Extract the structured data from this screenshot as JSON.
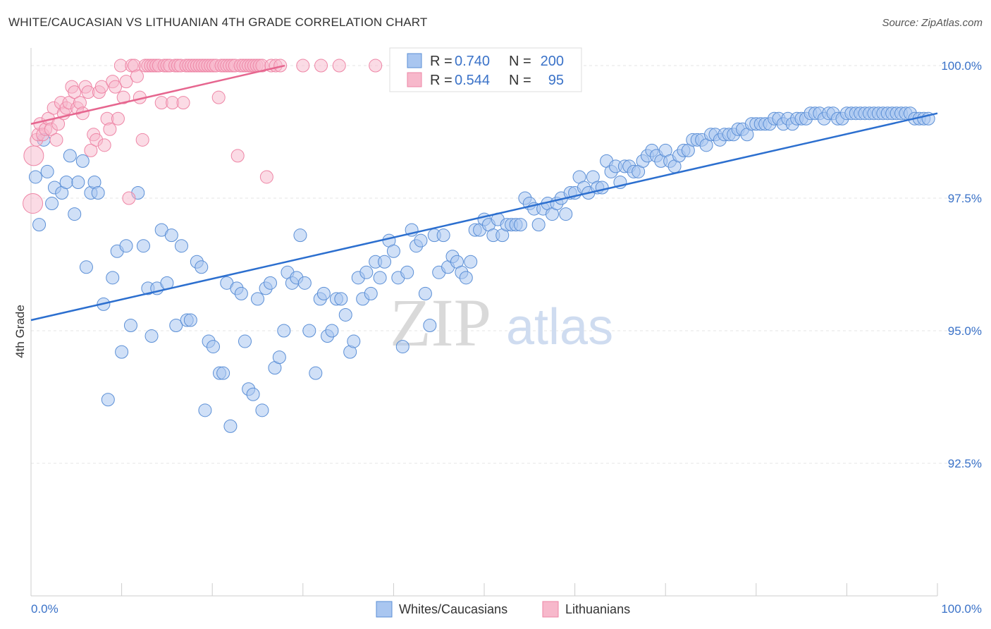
{
  "header": {
    "title": "WHITE/CAUCASIAN VS LITHUANIAN 4TH GRADE CORRELATION CHART",
    "source": "Source: ZipAtlas.com"
  },
  "watermark": {
    "zip": "ZIP",
    "atlas": "atlas"
  },
  "legend": {
    "rows": [
      {
        "r_label": "R = ",
        "r_value": "0.740",
        "n_label": "N = ",
        "n_value": "200",
        "color": "#a9c6f0"
      },
      {
        "r_label": "R = ",
        "r_value": "0.544",
        "n_label": "N = ",
        "n_value": "95",
        "color": "#f7b8cb"
      }
    ]
  },
  "bottom_legend": {
    "items": [
      {
        "label": "Whites/Caucasians",
        "color": "#a9c6f0"
      },
      {
        "label": "Lithuanians",
        "color": "#f7b8cb"
      }
    ]
  },
  "chart_data": {
    "type": "scatter",
    "title": "WHITE/CAUCASIAN VS LITHUANIAN 4TH GRADE CORRELATION CHART",
    "xlabel": "",
    "ylabel": "4th Grade",
    "xlim": [
      0,
      100
    ],
    "ylim": [
      90.0,
      100.2
    ],
    "x_tick_labels": [
      "0.0%",
      "100.0%"
    ],
    "y_ticks": [
      92.5,
      95.0,
      97.5,
      100.0
    ],
    "y_tick_labels": [
      "92.5%",
      "95.0%",
      "97.5%",
      "100.0%"
    ],
    "grid": true,
    "legend_position": "top-center",
    "colors": {
      "whites_fill": "#a9c6f0",
      "whites_stroke": "#5b8fd6",
      "whites_line": "#2c6fcf",
      "lith_fill": "#f7b8cb",
      "lith_stroke": "#ee86a6",
      "lith_line": "#e6668f"
    },
    "series": [
      {
        "name": "Whites/Caucasians",
        "r": 0.74,
        "n": 200,
        "trend": {
          "x": [
            0,
            100
          ],
          "y": [
            95.2,
            99.1
          ]
        },
        "points": [
          [
            0.5,
            97.9
          ],
          [
            0.9,
            97.0
          ],
          [
            1.4,
            98.6
          ],
          [
            1.8,
            98.0
          ],
          [
            2.3,
            97.4
          ],
          [
            2.6,
            97.7
          ],
          [
            3.4,
            97.6
          ],
          [
            3.9,
            97.8
          ],
          [
            4.3,
            98.3
          ],
          [
            4.8,
            97.2
          ],
          [
            5.2,
            97.8
          ],
          [
            5.7,
            98.2
          ],
          [
            6.1,
            96.2
          ],
          [
            6.6,
            97.6
          ],
          [
            7.0,
            97.8
          ],
          [
            7.4,
            97.6
          ],
          [
            8.0,
            95.5
          ],
          [
            8.5,
            93.7
          ],
          [
            9.0,
            96.0
          ],
          [
            9.5,
            96.5
          ],
          [
            10.0,
            94.6
          ],
          [
            10.5,
            96.6
          ],
          [
            11.0,
            95.1
          ],
          [
            11.8,
            97.6
          ],
          [
            12.4,
            96.6
          ],
          [
            12.9,
            95.8
          ],
          [
            13.3,
            94.9
          ],
          [
            13.9,
            95.8
          ],
          [
            14.4,
            96.9
          ],
          [
            15.0,
            95.9
          ],
          [
            15.5,
            96.8
          ],
          [
            16.0,
            95.1
          ],
          [
            16.6,
            96.6
          ],
          [
            17.2,
            95.2
          ],
          [
            17.6,
            95.2
          ],
          [
            18.3,
            96.3
          ],
          [
            18.8,
            96.2
          ],
          [
            19.2,
            93.5
          ],
          [
            19.6,
            94.8
          ],
          [
            20.1,
            94.7
          ],
          [
            20.8,
            94.2
          ],
          [
            21.2,
            94.2
          ],
          [
            21.6,
            95.9
          ],
          [
            22.0,
            93.2
          ],
          [
            22.7,
            95.8
          ],
          [
            23.2,
            95.7
          ],
          [
            23.6,
            94.8
          ],
          [
            24.0,
            93.9
          ],
          [
            24.5,
            93.8
          ],
          [
            25.0,
            95.6
          ],
          [
            25.5,
            93.5
          ],
          [
            25.9,
            95.8
          ],
          [
            26.4,
            95.9
          ],
          [
            26.9,
            94.3
          ],
          [
            27.4,
            94.5
          ],
          [
            27.9,
            95.0
          ],
          [
            28.3,
            96.1
          ],
          [
            28.8,
            95.9
          ],
          [
            29.3,
            96.0
          ],
          [
            29.7,
            96.8
          ],
          [
            30.2,
            95.9
          ],
          [
            30.7,
            95.0
          ],
          [
            31.4,
            94.2
          ],
          [
            31.9,
            95.6
          ],
          [
            32.3,
            95.7
          ],
          [
            32.7,
            94.9
          ],
          [
            33.2,
            95.0
          ],
          [
            33.7,
            95.6
          ],
          [
            34.2,
            95.6
          ],
          [
            34.7,
            95.3
          ],
          [
            35.2,
            94.6
          ],
          [
            35.6,
            94.8
          ],
          [
            36.1,
            96.0
          ],
          [
            36.6,
            95.6
          ],
          [
            37.0,
            96.1
          ],
          [
            37.5,
            95.7
          ],
          [
            38.0,
            96.3
          ],
          [
            38.5,
            96.0
          ],
          [
            39.0,
            96.3
          ],
          [
            39.5,
            96.7
          ],
          [
            40.0,
            96.5
          ],
          [
            40.5,
            96.0
          ],
          [
            41.0,
            94.7
          ],
          [
            41.5,
            96.1
          ],
          [
            42.0,
            96.9
          ],
          [
            42.5,
            96.6
          ],
          [
            43.0,
            96.7
          ],
          [
            43.5,
            95.7
          ],
          [
            44.0,
            95.1
          ],
          [
            44.5,
            96.8
          ],
          [
            45.0,
            96.1
          ],
          [
            45.5,
            96.8
          ],
          [
            46.0,
            96.2
          ],
          [
            46.5,
            96.4
          ],
          [
            47.0,
            96.3
          ],
          [
            47.5,
            96.1
          ],
          [
            48.0,
            96.0
          ],
          [
            48.5,
            96.3
          ],
          [
            49.0,
            96.9
          ],
          [
            49.5,
            96.9
          ],
          [
            50.0,
            97.1
          ],
          [
            50.5,
            97.0
          ],
          [
            51.0,
            96.8
          ],
          [
            51.5,
            97.1
          ],
          [
            52.0,
            96.8
          ],
          [
            52.5,
            97.0
          ],
          [
            53.0,
            97.0
          ],
          [
            53.5,
            97.0
          ],
          [
            54.0,
            97.0
          ],
          [
            54.5,
            97.5
          ],
          [
            55.0,
            97.4
          ],
          [
            55.5,
            97.3
          ],
          [
            56.0,
            97.0
          ],
          [
            56.5,
            97.3
          ],
          [
            57.0,
            97.4
          ],
          [
            57.5,
            97.2
          ],
          [
            58.0,
            97.4
          ],
          [
            58.5,
            97.5
          ],
          [
            59.0,
            97.2
          ],
          [
            59.5,
            97.6
          ],
          [
            60.0,
            97.6
          ],
          [
            60.5,
            97.9
          ],
          [
            61.0,
            97.7
          ],
          [
            61.5,
            97.6
          ],
          [
            62.0,
            97.9
          ],
          [
            62.5,
            97.7
          ],
          [
            63.0,
            97.7
          ],
          [
            63.5,
            98.2
          ],
          [
            64.0,
            98.0
          ],
          [
            64.5,
            98.1
          ],
          [
            65.0,
            97.8
          ],
          [
            65.5,
            98.1
          ],
          [
            66.0,
            98.1
          ],
          [
            66.5,
            98.0
          ],
          [
            67.0,
            98.0
          ],
          [
            67.5,
            98.2
          ],
          [
            68.0,
            98.3
          ],
          [
            68.5,
            98.4
          ],
          [
            69.0,
            98.3
          ],
          [
            69.5,
            98.2
          ],
          [
            70.0,
            98.4
          ],
          [
            70.5,
            98.2
          ],
          [
            71.0,
            98.1
          ],
          [
            71.5,
            98.3
          ],
          [
            72.0,
            98.4
          ],
          [
            72.5,
            98.4
          ],
          [
            73.0,
            98.6
          ],
          [
            73.5,
            98.6
          ],
          [
            74.0,
            98.6
          ],
          [
            74.5,
            98.5
          ],
          [
            75.0,
            98.7
          ],
          [
            75.5,
            98.7
          ],
          [
            76.0,
            98.6
          ],
          [
            76.5,
            98.7
          ],
          [
            77.0,
            98.7
          ],
          [
            77.5,
            98.7
          ],
          [
            78.0,
            98.8
          ],
          [
            78.5,
            98.8
          ],
          [
            79.0,
            98.7
          ],
          [
            79.5,
            98.9
          ],
          [
            80.0,
            98.9
          ],
          [
            80.5,
            98.9
          ],
          [
            81.0,
            98.9
          ],
          [
            81.5,
            98.9
          ],
          [
            82.0,
            99.0
          ],
          [
            82.5,
            99.0
          ],
          [
            83.0,
            98.9
          ],
          [
            83.5,
            99.0
          ],
          [
            84.0,
            98.9
          ],
          [
            84.5,
            99.0
          ],
          [
            85.0,
            99.0
          ],
          [
            85.5,
            99.0
          ],
          [
            86.0,
            99.1
          ],
          [
            86.5,
            99.1
          ],
          [
            87.0,
            99.1
          ],
          [
            87.5,
            99.0
          ],
          [
            88.0,
            99.1
          ],
          [
            88.5,
            99.1
          ],
          [
            89.0,
            99.0
          ],
          [
            89.5,
            99.0
          ],
          [
            90.0,
            99.1
          ],
          [
            90.5,
            99.1
          ],
          [
            91.0,
            99.1
          ],
          [
            91.5,
            99.1
          ],
          [
            92.0,
            99.1
          ],
          [
            92.5,
            99.1
          ],
          [
            93.0,
            99.1
          ],
          [
            93.5,
            99.1
          ],
          [
            94.0,
            99.1
          ],
          [
            94.5,
            99.1
          ],
          [
            95.0,
            99.1
          ],
          [
            95.5,
            99.1
          ],
          [
            96.0,
            99.1
          ],
          [
            96.5,
            99.1
          ],
          [
            97.0,
            99.1
          ],
          [
            97.5,
            99.0
          ],
          [
            98.0,
            99.0
          ],
          [
            98.5,
            99.0
          ],
          [
            99.0,
            99.0
          ]
        ]
      },
      {
        "name": "Lithuanians",
        "r": 0.544,
        "n": 95,
        "trend": {
          "x": [
            0,
            28
          ],
          "y": [
            98.9,
            100.0
          ]
        },
        "points": [
          [
            0.2,
            97.4
          ],
          [
            0.3,
            98.3
          ],
          [
            0.6,
            98.6
          ],
          [
            0.8,
            98.7
          ],
          [
            1.0,
            98.9
          ],
          [
            1.3,
            98.7
          ],
          [
            1.6,
            98.8
          ],
          [
            1.9,
            99.0
          ],
          [
            2.2,
            98.8
          ],
          [
            2.5,
            99.2
          ],
          [
            2.8,
            98.6
          ],
          [
            3.0,
            98.9
          ],
          [
            3.3,
            99.3
          ],
          [
            3.6,
            99.1
          ],
          [
            3.9,
            99.2
          ],
          [
            4.2,
            99.3
          ],
          [
            4.5,
            99.6
          ],
          [
            4.8,
            99.5
          ],
          [
            5.1,
            99.2
          ],
          [
            5.4,
            99.3
          ],
          [
            5.7,
            99.1
          ],
          [
            6.0,
            99.6
          ],
          [
            6.3,
            99.5
          ],
          [
            6.6,
            98.4
          ],
          [
            6.9,
            98.7
          ],
          [
            7.2,
            98.6
          ],
          [
            7.5,
            99.5
          ],
          [
            7.8,
            99.6
          ],
          [
            8.1,
            98.5
          ],
          [
            8.4,
            99.0
          ],
          [
            8.7,
            98.8
          ],
          [
            9.0,
            99.7
          ],
          [
            9.3,
            99.6
          ],
          [
            9.6,
            99.0
          ],
          [
            9.9,
            100.0
          ],
          [
            10.2,
            99.4
          ],
          [
            10.5,
            99.7
          ],
          [
            10.8,
            97.5
          ],
          [
            11.1,
            100.0
          ],
          [
            11.4,
            100.0
          ],
          [
            11.7,
            99.8
          ],
          [
            12.0,
            99.4
          ],
          [
            12.3,
            98.6
          ],
          [
            12.6,
            100.0
          ],
          [
            12.9,
            100.0
          ],
          [
            13.2,
            100.0
          ],
          [
            13.5,
            100.0
          ],
          [
            13.8,
            100.0
          ],
          [
            14.1,
            100.0
          ],
          [
            14.4,
            99.3
          ],
          [
            14.7,
            100.0
          ],
          [
            15.0,
            100.0
          ],
          [
            15.3,
            100.0
          ],
          [
            15.6,
            99.3
          ],
          [
            15.9,
            100.0
          ],
          [
            16.2,
            100.0
          ],
          [
            16.5,
            100.0
          ],
          [
            16.8,
            99.3
          ],
          [
            17.1,
            100.0
          ],
          [
            17.4,
            100.0
          ],
          [
            17.7,
            100.0
          ],
          [
            18.0,
            100.0
          ],
          [
            18.3,
            100.0
          ],
          [
            18.6,
            100.0
          ],
          [
            18.9,
            100.0
          ],
          [
            19.2,
            100.0
          ],
          [
            19.5,
            100.0
          ],
          [
            19.8,
            100.0
          ],
          [
            20.1,
            100.0
          ],
          [
            20.4,
            100.0
          ],
          [
            20.7,
            99.4
          ],
          [
            21.0,
            100.0
          ],
          [
            21.3,
            100.0
          ],
          [
            21.6,
            100.0
          ],
          [
            21.9,
            100.0
          ],
          [
            22.2,
            100.0
          ],
          [
            22.5,
            100.0
          ],
          [
            22.8,
            98.3
          ],
          [
            23.1,
            100.0
          ],
          [
            23.4,
            100.0
          ],
          [
            23.7,
            100.0
          ],
          [
            24.0,
            100.0
          ],
          [
            24.3,
            100.0
          ],
          [
            24.6,
            100.0
          ],
          [
            24.9,
            100.0
          ],
          [
            25.2,
            100.0
          ],
          [
            25.5,
            100.0
          ],
          [
            26.0,
            97.9
          ],
          [
            26.5,
            100.0
          ],
          [
            27.0,
            100.0
          ],
          [
            27.5,
            100.0
          ],
          [
            30.0,
            100.0
          ],
          [
            32.0,
            100.0
          ],
          [
            34.0,
            100.0
          ],
          [
            38.0,
            100.0
          ]
        ]
      }
    ]
  }
}
